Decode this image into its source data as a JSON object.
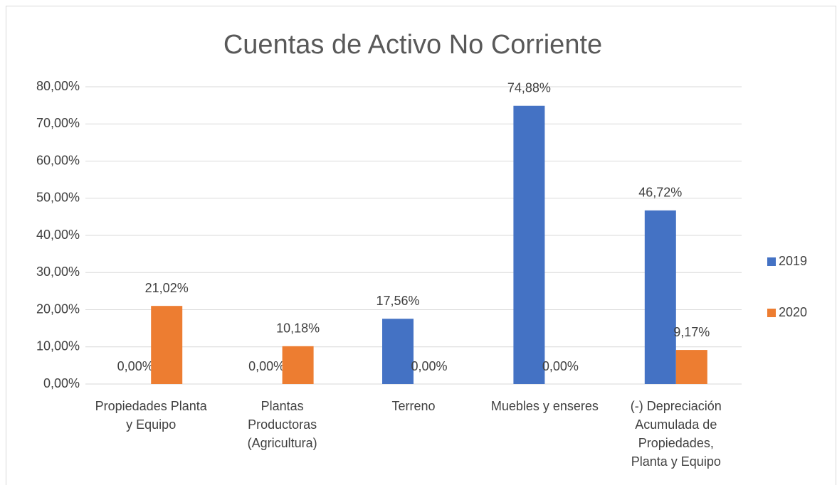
{
  "chart_data": {
    "type": "bar",
    "title": "Cuentas de Activo No Corriente",
    "categories": [
      "Propiedades Planta y Equipo",
      "Plantas Productoras (Agricultura)",
      "Terreno",
      "Muebles y enseres",
      "(-) Depreciación Acumulada de Propiedades, Planta y Equipo"
    ],
    "series": [
      {
        "name": "2019",
        "color": "#4472c4",
        "values": [
          0,
          0,
          17.56,
          74.88,
          46.72
        ],
        "value_labels": [
          "0,00%",
          "0,00%",
          "17,56%",
          "74,88%",
          "46,72%"
        ]
      },
      {
        "name": "2020",
        "color": "#ed7d31",
        "values": [
          21.02,
          10.18,
          0,
          0,
          9.17
        ],
        "value_labels": [
          "21,02%",
          "10,18%",
          "0,00%",
          "0,00%",
          "9,17%"
        ]
      }
    ],
    "ylim": [
      0,
      80
    ],
    "yticks": [
      {
        "value": 0,
        "label": "0,00%"
      },
      {
        "value": 10,
        "label": "10,00%"
      },
      {
        "value": 20,
        "label": "20,00%"
      },
      {
        "value": 30,
        "label": "30,00%"
      },
      {
        "value": 40,
        "label": "40,00%"
      },
      {
        "value": 50,
        "label": "50,00%"
      },
      {
        "value": 60,
        "label": "60,00%"
      },
      {
        "value": 70,
        "label": "70,00%"
      },
      {
        "value": 80,
        "label": "80,00%"
      }
    ],
    "grid": true,
    "legend": "right"
  }
}
